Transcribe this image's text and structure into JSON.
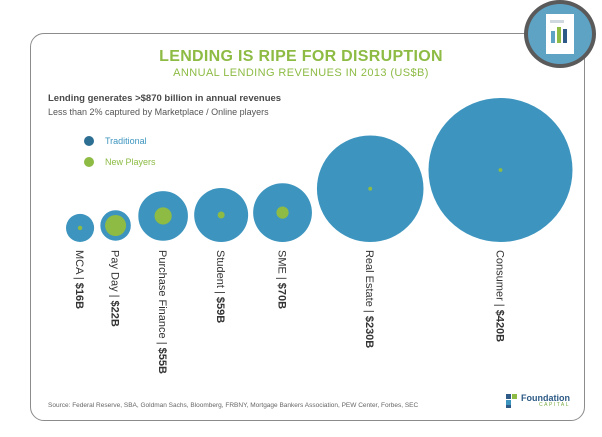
{
  "header": {
    "title": "LENDING IS RIPE FOR DISRUPTION",
    "subtitle": "ANNUAL LENDING REVENUES IN 2013 (US$B)"
  },
  "lead": {
    "headline": "Lending generates >$870 billion in annual revenues",
    "note": "Less than 2% captured by Marketplace / Online players"
  },
  "legend": {
    "traditional": "Traditional",
    "new_players": "New Players"
  },
  "colors": {
    "traditional": "#3d95bf",
    "new_players": "#8dbb44",
    "title": "#8dbb44"
  },
  "chart_data": {
    "type": "bubble",
    "title": "LENDING IS RIPE FOR DISRUPTION",
    "subtitle": "ANNUAL LENDING REVENUES IN 2013 (US$B)",
    "unit": "US$B",
    "categories": [
      "MCA",
      "Pay Day",
      "Purchase Finance",
      "Student",
      "SME",
      "Real Estate",
      "Consumer"
    ],
    "labels": [
      "MCA | ",
      "Pay Day | ",
      "Purchase Finance | ",
      "Student | ",
      "SME | ",
      "Real Estate | ",
      "Consumer | "
    ],
    "value_labels": [
      "$16B",
      "$22B",
      "$55B",
      "$59B",
      "$70B",
      "$230B",
      "$420B"
    ],
    "series": [
      {
        "name": "Traditional",
        "values": [
          16,
          22,
          55,
          59,
          70,
          230,
          420
        ]
      },
      {
        "name": "New Players",
        "values": [
          0.4,
          9,
          6,
          1,
          3,
          0.3,
          0.3
        ]
      }
    ]
  },
  "footer": {
    "source": "Source: Federal Reserve, SBA, Goldman Sachs, Bloomberg, FRBNY, Mortgage Bankers Association, PEW Center, Forbes, SEC",
    "logo_name": "Foundation",
    "logo_tagline": "CAPITAL"
  }
}
